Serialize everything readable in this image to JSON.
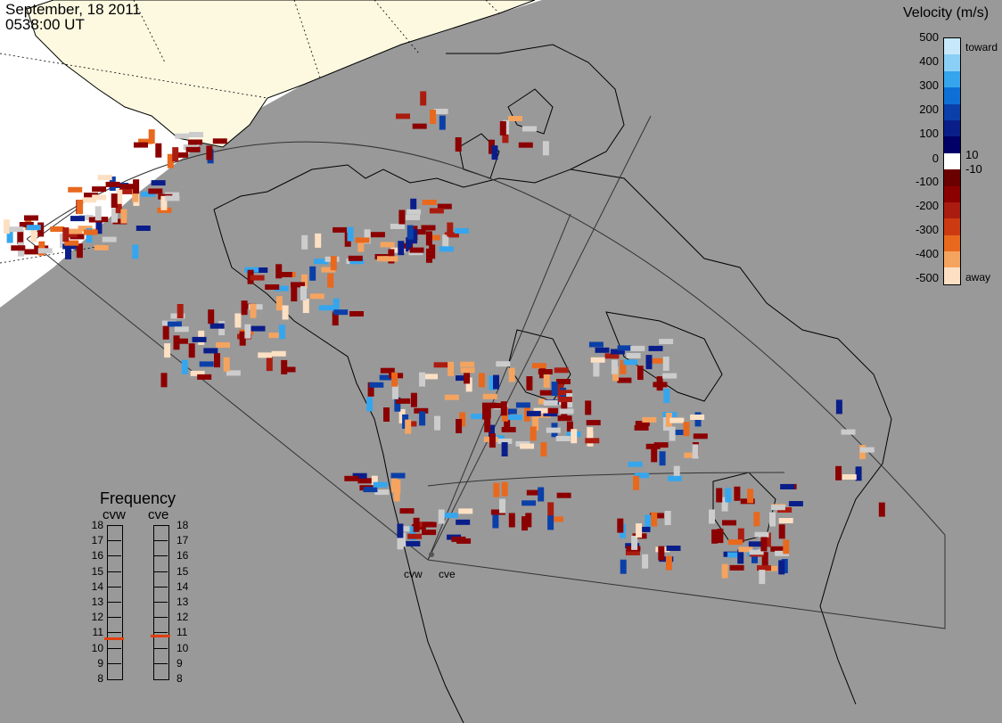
{
  "header": {
    "date": "September, 18 2011",
    "time": "0538:00 UT"
  },
  "velocity_scale": {
    "title": "Velocity (m/s)",
    "ticks": [
      "500",
      "400",
      "300",
      "200",
      "100",
      "10",
      "0",
      "-10",
      "-100",
      "-200",
      "-300",
      "-400",
      "-500"
    ],
    "toward_label": "toward",
    "away_label": "away",
    "colors": [
      "#c6e8fa",
      "#8acff5",
      "#35a6ee",
      "#0e70d6",
      "#0b3fa8",
      "#0a1e8a",
      "#000066",
      "#ffffff",
      "#6b0000",
      "#8b0000",
      "#aa1c10",
      "#cc3a12",
      "#e8691e",
      "#f5a460",
      "#fde0c4"
    ]
  },
  "frequency": {
    "title": "Frequency",
    "radars": [
      "cvw",
      "cve"
    ],
    "ticks": [
      "18",
      "17",
      "16",
      "15",
      "14",
      "13",
      "12",
      "11",
      "10",
      "9",
      "8"
    ],
    "selected_mhz": {
      "cvw": 10.6,
      "cve": 10.8
    },
    "selected_color": "#e04010"
  },
  "radar_sites": [
    "cvw",
    "cve"
  ],
  "colors": {
    "night": "#999999",
    "day": "#ffffff",
    "land_day": "#fcf9e0",
    "ground_scatter": "#cccccc"
  }
}
